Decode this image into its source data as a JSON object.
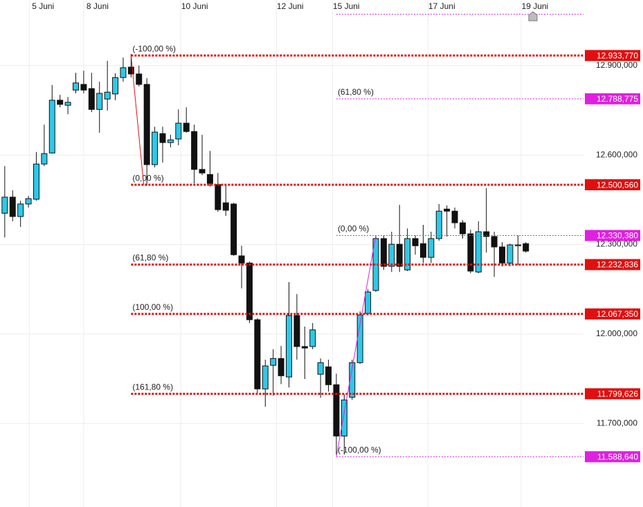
{
  "chart_data": {
    "type": "candlestick",
    "xlim": [
      -0.6,
      73.3
    ],
    "xticks": [
      {
        "value": 3.1,
        "label": "5 Juni"
      },
      {
        "value": 10,
        "label": "8 Juni"
      },
      {
        "value": 22.3,
        "label": "10 Juni"
      },
      {
        "value": 34.4,
        "label": "12 Juni"
      },
      {
        "value": 41.5,
        "label": "15 Juni"
      },
      {
        "value": 53.6,
        "label": "17 Juni"
      },
      {
        "value": 65.4,
        "label": "19 Juni"
      }
    ],
    "ylim": [
      11420,
      13120
    ],
    "yticks": [
      {
        "value": 12900,
        "label": "12.900,000"
      },
      {
        "value": 12600,
        "label": "12.600,000"
      },
      {
        "value": 12300,
        "label": "12.300,000"
      },
      {
        "value": 12000,
        "label": "12.000,000"
      },
      {
        "value": 11700,
        "label": "11.700,000"
      }
    ],
    "grid": true,
    "up_color": "#2ec8e8",
    "down_color": "#111111",
    "open": [
      12405,
      12459,
      12394,
      12436,
      12452,
      12570,
      12607,
      12784,
      12767,
      12818,
      12837,
      12823,
      12753,
      12788,
      12805,
      12860,
      12895,
      12872,
      12837,
      12568,
      12672,
      12642,
      12654,
      12707,
      12679,
      12552,
      12535,
      12501,
      12440,
      12436,
      12262,
      12238,
      12048,
      11816,
      11895,
      11918,
      11856,
      12062,
      11958,
      11958,
      11865,
      11890,
      11830,
      11658,
      11788,
      11904,
      12069,
      12146,
      12320,
      12227,
      12301,
      12215,
      12320,
      12303,
      12257,
      12320,
      12419,
      12412,
      12373,
      12336,
      12208,
      12343,
      12327,
      12292,
      12238,
      12296,
      12303
    ],
    "high": [
      12563,
      12482,
      12447,
      12463,
      12610,
      12702,
      12835,
      12802,
      12795,
      12876,
      12883,
      12876,
      12846,
      12916,
      12874,
      12927,
      12939,
      12900,
      12858,
      12695,
      12695,
      12668,
      12753,
      12760,
      12702,
      12668,
      12614,
      12540,
      12498,
      12440,
      12296,
      12243,
      12053,
      11914,
      11949,
      11960,
      12174,
      12134,
      12025,
      12037,
      11918,
      11914,
      11867,
      11798,
      11914,
      12076,
      12150,
      12329,
      12331,
      12343,
      12433,
      12354,
      12331,
      12366,
      12343,
      12436,
      12431,
      12424,
      12382,
      12350,
      12378,
      12489,
      12343,
      12308,
      12303,
      12331,
      12308
    ],
    "low": [
      12324,
      12378,
      12359,
      12424,
      12447,
      12563,
      12605,
      12760,
      12737,
      12807,
      12807,
      12744,
      12675,
      12749,
      12784,
      12846,
      12860,
      12830,
      12498,
      12559,
      12575,
      12626,
      12633,
      12675,
      12505,
      12533,
      12494,
      12410,
      12396,
      12262,
      12153,
      12037,
      11802,
      11756,
      11793,
      11832,
      11821,
      11914,
      11849,
      11949,
      11786,
      11807,
      11596,
      11596,
      11779,
      11900,
      12062,
      12141,
      12215,
      12208,
      12208,
      12211,
      12266,
      12238,
      12238,
      12313,
      12327,
      12354,
      12320,
      12204,
      12204,
      12273,
      12192,
      12227,
      12227,
      12232,
      12273
    ],
    "close": [
      12459,
      12394,
      12436,
      12454,
      12570,
      12605,
      12784,
      12770,
      12777,
      12842,
      12818,
      12753,
      12807,
      12811,
      12860,
      12893,
      12872,
      12837,
      12568,
      12677,
      12642,
      12651,
      12707,
      12679,
      12552,
      12540,
      12505,
      12417,
      12415,
      12266,
      12238,
      12048,
      11816,
      11893,
      11918,
      11860,
      12062,
      11958,
      11953,
      12014,
      11904,
      11830,
      11658,
      11779,
      11904,
      12064,
      12141,
      12320,
      12227,
      12301,
      12227,
      12320,
      12296,
      12257,
      12320,
      12412,
      12412,
      12373,
      12336,
      12211,
      12343,
      12327,
      12292,
      12238,
      12299,
      12299,
      12278
    ],
    "fib_sets": [
      {
        "color": "#e01010",
        "x_start": 16,
        "anchor_x": [
          16,
          17.6
        ],
        "levels": [
          {
            "label": "(-100,00 %)",
            "value": 12933.77,
            "value_label": "12.933,770"
          },
          {
            "label": "(0,00 %)",
            "value": 12500.56,
            "value_label": "12.500,560"
          },
          {
            "label": "(61,80 %)",
            "value": 12232.836,
            "value_label": "12.232,836"
          },
          {
            "label": "(100,00 %)",
            "value": 12067.35,
            "value_label": "12.067,350"
          },
          {
            "label": "(161,80 %)",
            "value": 11799.626,
            "value_label": "11.799,626"
          }
        ]
      },
      {
        "color": "#e020e0",
        "x_start": 42,
        "anchor_x": [
          42,
          47
        ],
        "levels": [
          {
            "label": "(-100,00 %)",
            "value": 11588.64,
            "value_label": "11.588,640"
          },
          {
            "label": "(0,00 %)",
            "value": 12330.38,
            "value_label": "12.330,380"
          },
          {
            "label": "(61,80 %)",
            "value": 12788.775,
            "value_label": "12.788,775"
          },
          {
            "value": 13072.12
          }
        ]
      }
    ]
  }
}
